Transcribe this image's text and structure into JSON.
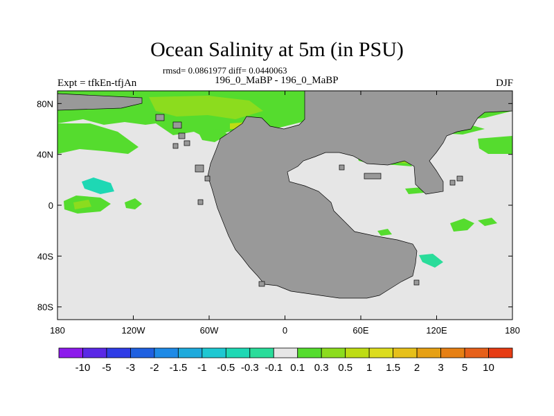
{
  "title": "Ocean Salinity at 5m (in PSU)",
  "stats": "rmsd= 0.0861977 diff= 0.0440063",
  "center_label": "196_0_MaBP - 196_0_MaBP",
  "left_label": "Expt = tfkEn-tfjAn",
  "right_label": "DJF",
  "y_ticks": [
    "80N",
    "40N",
    "0",
    "40S",
    "80S"
  ],
  "y_tick_values": [
    80,
    40,
    0,
    -40,
    -80
  ],
  "x_ticks": [
    "180",
    "120W",
    "60W",
    "0",
    "60E",
    "120E",
    "180"
  ],
  "x_tick_values": [
    -180,
    -120,
    -60,
    0,
    60,
    120,
    180
  ],
  "colorbar": {
    "labels": [
      "-10",
      "-5",
      "-3",
      "-2",
      "-1.5",
      "-1",
      "-0.5",
      "-0.3",
      "-0.1",
      "0.1",
      "0.3",
      "0.5",
      "1",
      "1.5",
      "2",
      "3",
      "5",
      "10"
    ],
    "colors": [
      "#8c1aeb",
      "#5a28e6",
      "#2f3ce6",
      "#1f60e0",
      "#1e8ae6",
      "#1eaadc",
      "#1ec8d2",
      "#1ed8b4",
      "#2adc9a",
      "#e6e6e6",
      "#55dc2e",
      "#8cdc1e",
      "#bedc14",
      "#dcdc1e",
      "#e6c01a",
      "#e6a014",
      "#e68014",
      "#e6601a",
      "#e63c14"
    ]
  },
  "colors": {
    "land": "#999999",
    "ocean_zero": "#e6e6e6",
    "pos_01_03": "#55dc2e",
    "pos_03_05": "#8cdc1e",
    "pos_05_1": "#bedc14",
    "neg_01_03": "#2adc9a",
    "neg_03_05": "#1ed8b4"
  }
}
